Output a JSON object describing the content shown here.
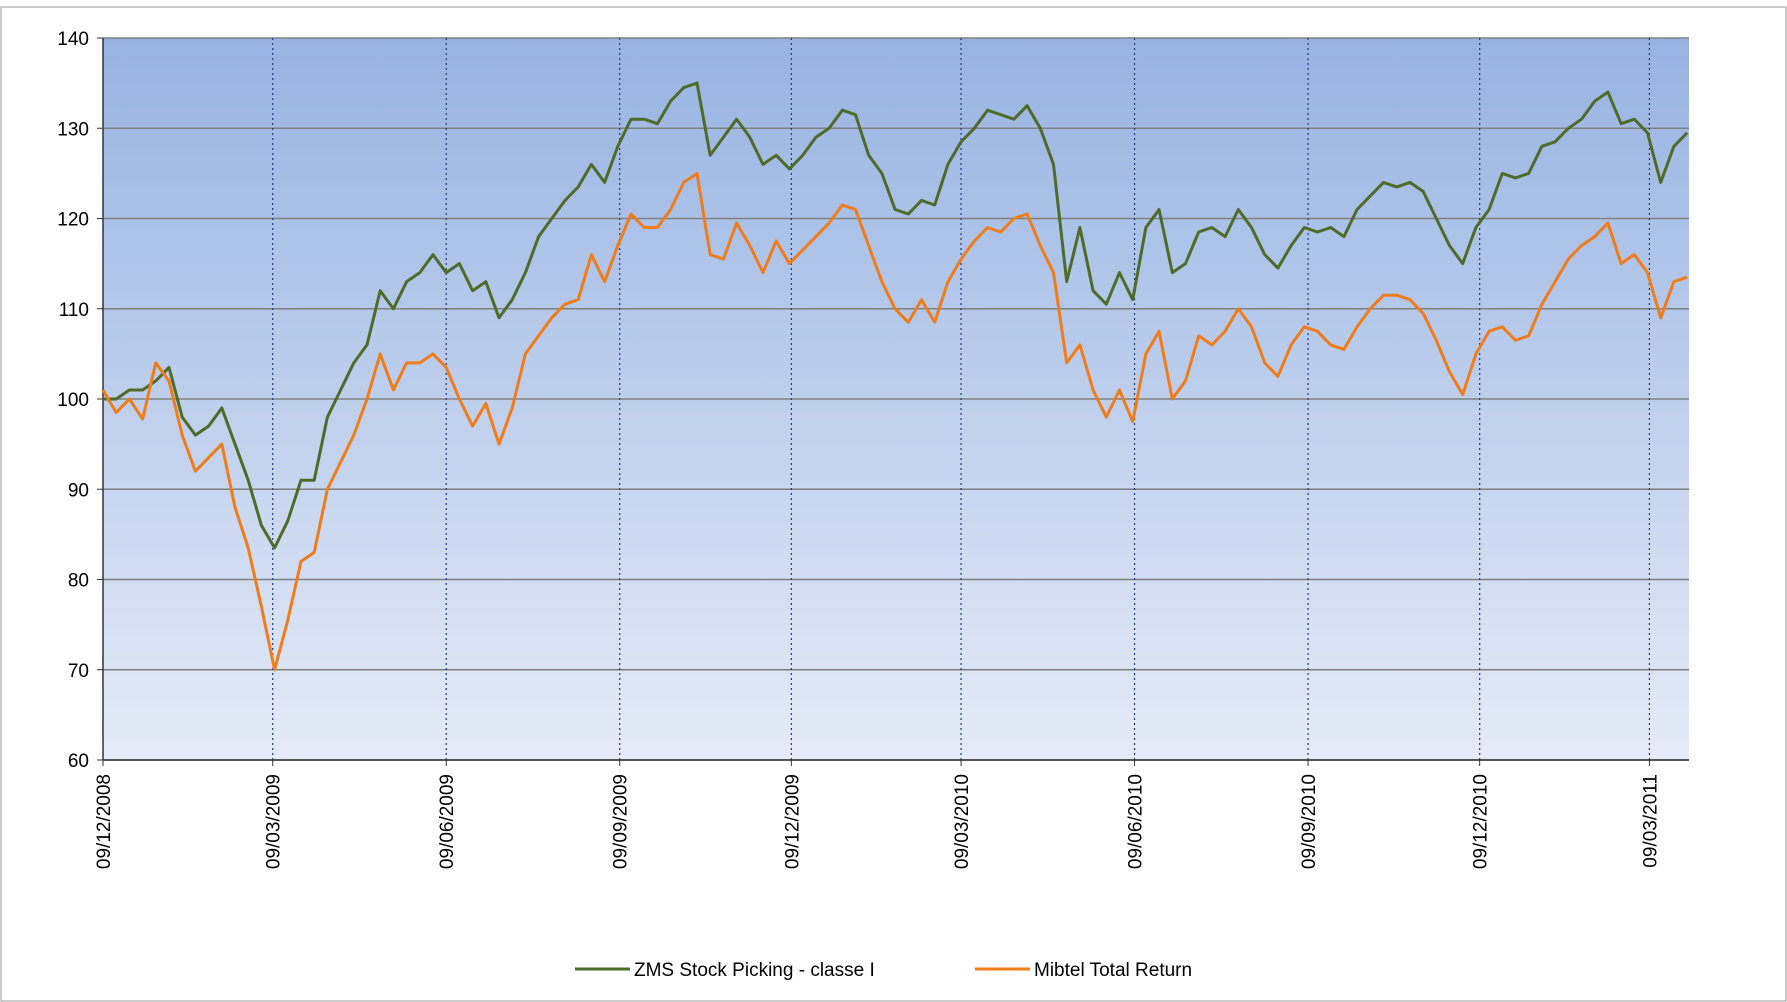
{
  "chart_data": {
    "type": "line",
    "x": [
      "2008-12-09",
      "2008-12-16",
      "2008-12-23",
      "2008-12-30",
      "2009-01-06",
      "2009-01-13",
      "2009-01-20",
      "2009-01-27",
      "2009-02-03",
      "2009-02-10",
      "2009-02-17",
      "2009-02-24",
      "2009-03-03",
      "2009-03-10",
      "2009-03-17",
      "2009-03-24",
      "2009-03-31",
      "2009-04-07",
      "2009-04-14",
      "2009-04-21",
      "2009-04-28",
      "2009-05-05",
      "2009-05-12",
      "2009-05-19",
      "2009-05-26",
      "2009-06-02",
      "2009-06-09",
      "2009-06-16",
      "2009-06-23",
      "2009-06-30",
      "2009-07-07",
      "2009-07-14",
      "2009-07-21",
      "2009-07-28",
      "2009-08-04",
      "2009-08-11",
      "2009-08-18",
      "2009-08-25",
      "2009-09-01",
      "2009-09-08",
      "2009-09-15",
      "2009-09-22",
      "2009-09-29",
      "2009-10-06",
      "2009-10-13",
      "2009-10-20",
      "2009-10-27",
      "2009-11-03",
      "2009-11-10",
      "2009-11-17",
      "2009-11-24",
      "2009-12-01",
      "2009-12-08",
      "2009-12-15",
      "2009-12-22",
      "2009-12-29",
      "2010-01-05",
      "2010-01-12",
      "2010-01-19",
      "2010-01-26",
      "2010-02-02",
      "2010-02-09",
      "2010-02-16",
      "2010-02-23",
      "2010-03-02",
      "2010-03-09",
      "2010-03-16",
      "2010-03-23",
      "2010-03-30",
      "2010-04-06",
      "2010-04-13",
      "2010-04-20",
      "2010-04-27",
      "2010-05-04",
      "2010-05-11",
      "2010-05-18",
      "2010-05-25",
      "2010-06-01",
      "2010-06-08",
      "2010-06-15",
      "2010-06-22",
      "2010-06-29",
      "2010-07-06",
      "2010-07-13",
      "2010-07-20",
      "2010-07-27",
      "2010-08-03",
      "2010-08-10",
      "2010-08-17",
      "2010-08-24",
      "2010-08-31",
      "2010-09-07",
      "2010-09-14",
      "2010-09-21",
      "2010-09-28",
      "2010-10-05",
      "2010-10-12",
      "2010-10-19",
      "2010-10-26",
      "2010-11-02",
      "2010-11-09",
      "2010-11-16",
      "2010-11-23",
      "2010-11-30",
      "2010-12-07",
      "2010-12-14",
      "2010-12-21",
      "2010-12-28",
      "2011-01-04",
      "2011-01-11",
      "2011-01-18",
      "2011-01-25",
      "2011-02-01",
      "2011-02-08",
      "2011-02-15",
      "2011-02-22",
      "2011-03-01",
      "2011-03-08",
      "2011-03-15",
      "2011-03-22",
      "2011-03-29"
    ],
    "series": [
      {
        "name": "ZMS Stock Picking - classe I",
        "color": "#4e6b2a",
        "values": [
          100,
          100,
          101,
          101,
          102,
          103.5,
          98,
          96,
          97,
          99,
          95,
          91,
          86,
          83.5,
          86.5,
          91,
          91,
          98,
          101,
          104,
          106,
          112,
          110,
          113,
          114,
          116,
          114,
          115,
          112,
          113,
          109,
          111,
          114,
          118,
          120,
          122,
          123.5,
          126,
          124,
          128,
          131,
          131,
          130.5,
          133,
          134.5,
          135,
          127,
          129,
          131,
          129,
          126,
          127,
          125.5,
          127,
          129,
          130,
          132,
          131.5,
          127,
          125,
          121,
          120.5,
          122,
          121.5,
          126,
          128.5,
          130,
          132,
          131.5,
          131,
          132.5,
          130,
          126,
          113,
          119,
          112,
          110.5,
          114,
          111,
          119,
          121,
          114,
          115,
          118.5,
          119,
          118,
          121,
          119,
          116,
          114.5,
          117,
          119,
          118.5,
          119,
          118,
          121,
          122.5,
          124,
          123.5,
          124,
          123,
          120,
          117,
          115,
          119,
          121,
          125,
          124.5,
          125,
          128,
          128.5,
          130,
          131,
          133,
          134,
          130.5,
          131,
          129.5,
          124,
          128,
          129.5
        ]
      },
      {
        "name": "Mibtel Total Return",
        "color": "#f07c1a",
        "values": [
          101,
          98.5,
          100,
          97.8,
          104,
          102,
          96,
          92,
          93.5,
          95,
          88,
          83.5,
          77,
          70,
          75.5,
          82,
          83,
          90,
          93,
          96,
          100,
          105,
          101,
          104,
          104,
          105,
          103.5,
          100,
          97,
          99.5,
          95,
          99,
          105,
          107,
          109,
          110.5,
          111,
          116,
          113,
          117,
          120.5,
          119,
          119,
          121,
          124,
          125,
          116,
          115.5,
          119.5,
          117,
          114,
          117.5,
          115,
          116.5,
          118,
          119.5,
          121.5,
          121,
          117,
          113,
          110,
          108.5,
          111,
          108.5,
          113,
          115.5,
          117.5,
          119,
          118.5,
          120,
          120.5,
          117,
          114,
          104,
          106,
          101,
          98,
          101,
          97.5,
          105,
          107.5,
          100,
          102,
          107,
          106,
          107.5,
          110,
          108,
          104,
          102.5,
          106,
          108,
          107.5,
          106,
          105.5,
          108,
          110,
          111.5,
          111.5,
          111,
          109.5,
          106.5,
          103,
          100.5,
          105,
          107.5,
          108,
          106.5,
          107,
          110.5,
          113,
          115.5,
          117,
          118,
          119.5,
          115,
          116,
          114,
          109,
          113,
          113.5
        ]
      }
    ],
    "xlim": [
      "2008-12-09",
      "2011-03-30"
    ],
    "xticks": [
      {
        "value": "2008-12-09",
        "label": "09/12/2008"
      },
      {
        "value": "2009-03-09",
        "label": "09/03/2009"
      },
      {
        "value": "2009-06-09",
        "label": "09/06/2009"
      },
      {
        "value": "2009-09-09",
        "label": "09/09/2009"
      },
      {
        "value": "2009-12-09",
        "label": "09/12/2009"
      },
      {
        "value": "2010-03-09",
        "label": "09/03/2010"
      },
      {
        "value": "2010-06-09",
        "label": "09/06/2010"
      },
      {
        "value": "2010-09-09",
        "label": "09/09/2010"
      },
      {
        "value": "2010-12-09",
        "label": "09/12/2010"
      },
      {
        "value": "2011-03-09",
        "label": "09/03/2011"
      }
    ],
    "ylim": [
      60,
      140
    ],
    "yticks": [
      60,
      70,
      80,
      90,
      100,
      110,
      120,
      130,
      140
    ],
    "grid": true
  }
}
